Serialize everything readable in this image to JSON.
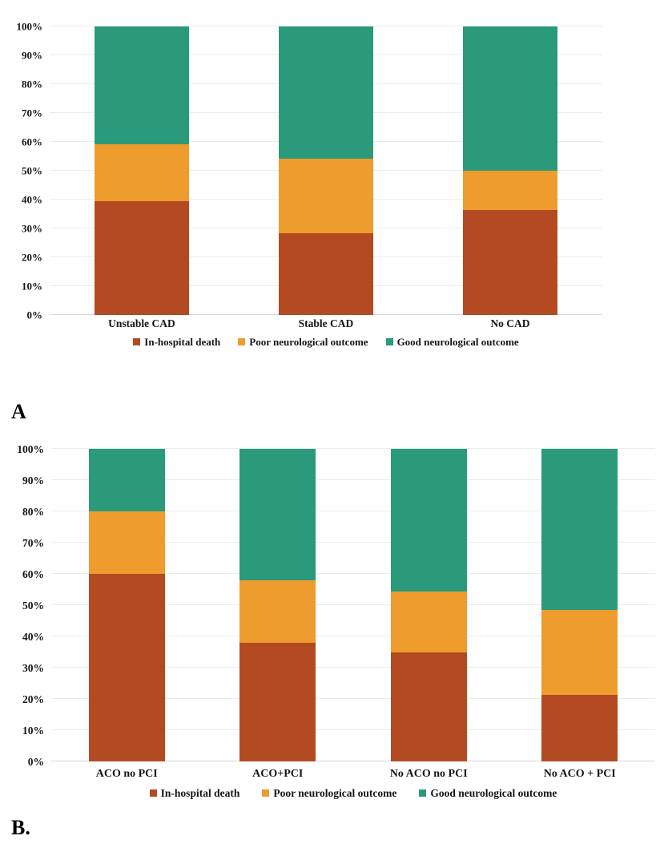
{
  "panels": {
    "a_label": "A",
    "b_label": "B."
  },
  "colors": {
    "in_hospital_death": "#B34A22",
    "poor_neurological_outcome": "#EE9C2E",
    "good_neurological_outcome": "#2A9A7B",
    "gridline": "#ECECEC",
    "axis_line": "#D6D6D6",
    "text": "#151515"
  },
  "chart_data": [
    {
      "id": "chart-a",
      "type": "bar",
      "stacked": true,
      "units": "percent",
      "title": "",
      "xlabel": "",
      "ylabel": "",
      "grid": true,
      "legend_position": "bottom",
      "y_axis": {
        "min": 0,
        "max": 100,
        "step": 10,
        "tick_suffix": "%"
      },
      "categories": [
        "Unstable CAD",
        "Stable CAD",
        "No CAD"
      ],
      "series": [
        {
          "name": "In-hospital death",
          "color_key": "in_hospital_death",
          "values": [
            39.4,
            28.3,
            36.4
          ]
        },
        {
          "name": "Poor neurological outcome",
          "color_key": "poor_neurological_outcome",
          "values": [
            19.8,
            26.0,
            13.6
          ]
        },
        {
          "name": "Good neurological outcome",
          "color_key": "good_neurological_outcome",
          "values": [
            40.8,
            45.7,
            50.0
          ]
        }
      ]
    },
    {
      "id": "chart-b",
      "type": "bar",
      "stacked": true,
      "units": "percent",
      "title": "",
      "xlabel": "",
      "ylabel": "",
      "grid": true,
      "legend_position": "bottom",
      "y_axis": {
        "min": 0,
        "max": 100,
        "step": 10,
        "tick_suffix": "%"
      },
      "categories": [
        "ACO no PCI",
        "ACO+PCI",
        "No ACO no PCI",
        "No ACO + PCI"
      ],
      "series": [
        {
          "name": "In-hospital death",
          "color_key": "in_hospital_death",
          "values": [
            60.0,
            38.0,
            34.8,
            21.2
          ]
        },
        {
          "name": "Poor neurological outcome",
          "color_key": "poor_neurological_outcome",
          "values": [
            20.0,
            20.0,
            19.6,
            27.3
          ]
        },
        {
          "name": "Good neurological outcome",
          "color_key": "good_neurological_outcome",
          "values": [
            20.0,
            42.0,
            45.6,
            51.5
          ]
        }
      ]
    }
  ]
}
